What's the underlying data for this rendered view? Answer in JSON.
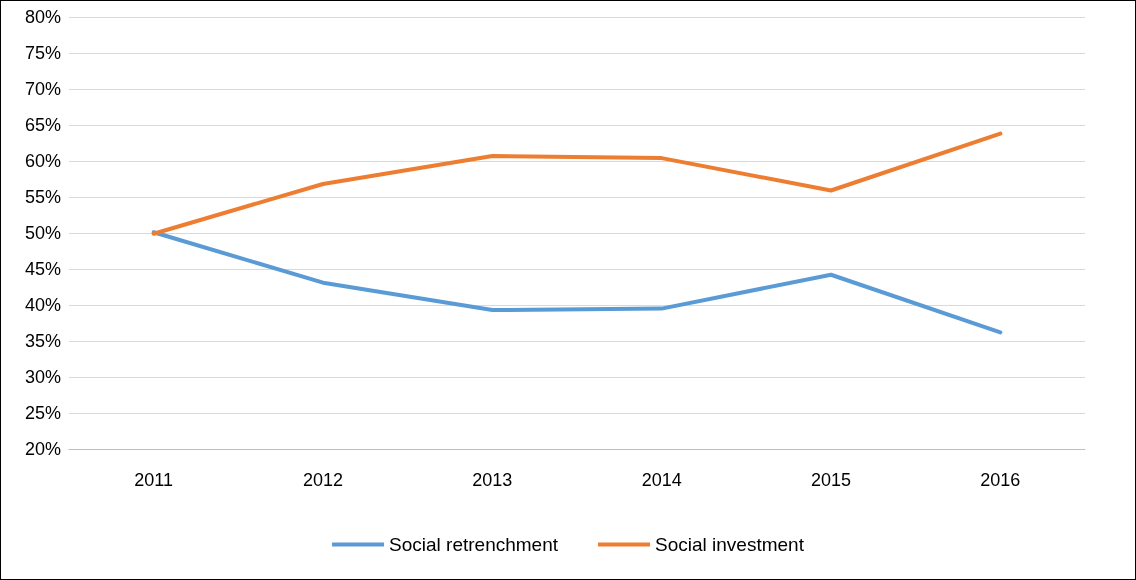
{
  "chart_data": {
    "type": "line",
    "categories": [
      "2011",
      "2012",
      "2013",
      "2014",
      "2015",
      "2016"
    ],
    "series": [
      {
        "name": "Social retrenchment",
        "color": "#5b9bd5",
        "values": [
          50.1,
          43.1,
          39.3,
          39.5,
          44.2,
          36.2
        ]
      },
      {
        "name": "Social investment",
        "color": "#ed7d31",
        "values": [
          49.9,
          56.8,
          60.7,
          60.4,
          55.9,
          63.8
        ]
      }
    ],
    "ylim": [
      20,
      80
    ],
    "yticks": [
      {
        "value": 20,
        "label": "20%"
      },
      {
        "value": 25,
        "label": "25%"
      },
      {
        "value": 30,
        "label": "30%"
      },
      {
        "value": 35,
        "label": "35%"
      },
      {
        "value": 40,
        "label": "40%"
      },
      {
        "value": 45,
        "label": "45%"
      },
      {
        "value": 50,
        "label": "50%"
      },
      {
        "value": 55,
        "label": "55%"
      },
      {
        "value": 60,
        "label": "60%"
      },
      {
        "value": 65,
        "label": "65%"
      },
      {
        "value": 70,
        "label": "70%"
      },
      {
        "value": 75,
        "label": "75%"
      },
      {
        "value": 80,
        "label": "80%"
      }
    ],
    "grid": "y",
    "legend": "bottom",
    "marker": "none",
    "line_style": "solid"
  }
}
